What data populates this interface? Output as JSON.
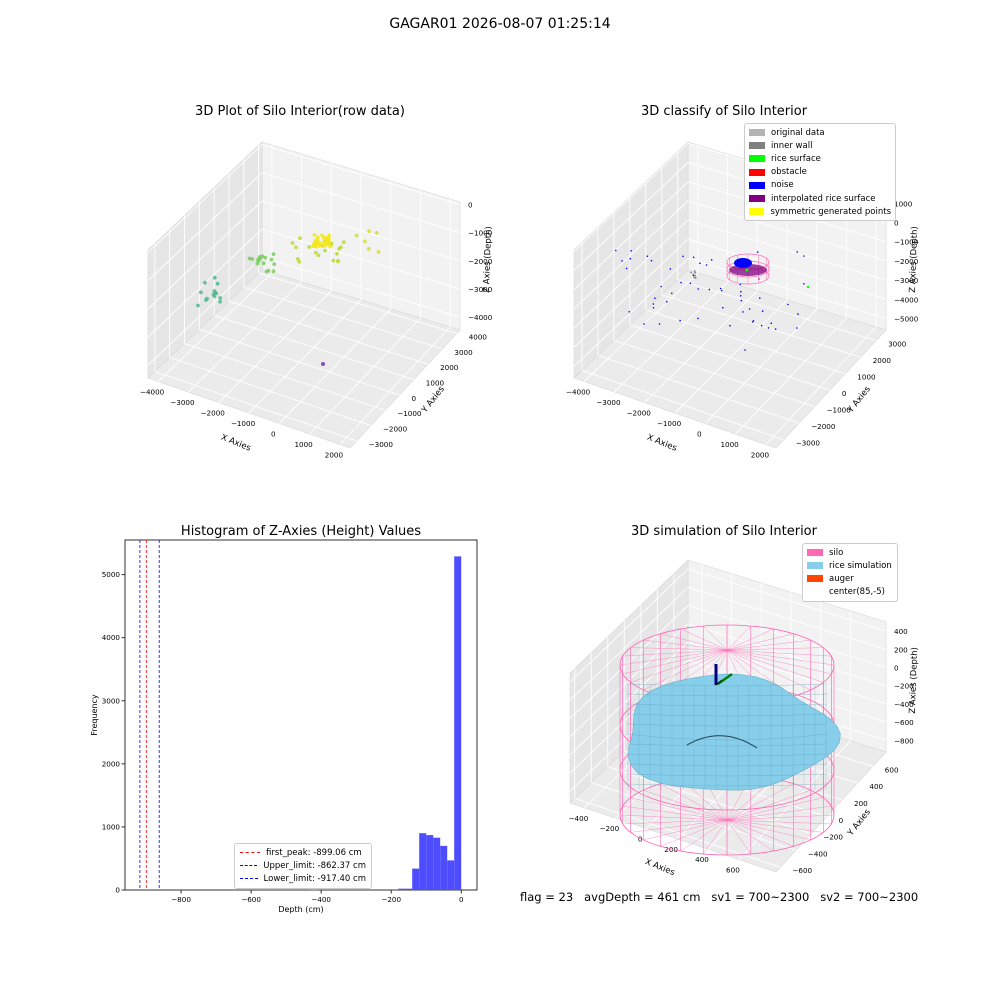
{
  "suptitle": "GAGAR01 2026-08-07 01:25:14",
  "footer": "flag = 23   avgDepth = 461 cm   sv1 = 700~2300   sv2 = 700~2300",
  "colors": {
    "original": "#b3b3b3",
    "inner_wall": "#808080",
    "rice_surface": "#00ff00",
    "obstacle": "#ff0000",
    "noise": "#0000ff",
    "interp": "#800080",
    "symmetric": "#ffff00",
    "silo": "#ff69b4",
    "rice_sim": "#87ceeb",
    "auger": "#ff4500",
    "hist": "#4d4dff"
  },
  "chart_data": [
    {
      "type": "scatter",
      "title": "3D Plot of Silo Interior(row data)",
      "xlabel": "X Axies",
      "ylabel": "Y Axies",
      "zlabel": "Z Axies (Depth)",
      "xticks": [
        "−4000",
        "−3000",
        "−2000",
        "−1000",
        "0",
        "1000",
        "2000"
      ],
      "yticks": [
        "−3000",
        "−2000",
        "−1000",
        "0",
        "1000",
        "2000",
        "3000",
        "4000"
      ],
      "zticks": [
        "0",
        "−1000",
        "−2000",
        "−3000",
        "−4000"
      ],
      "xlim": [
        -4300,
        2400
      ],
      "ylim": [
        -3300,
        4300
      ],
      "zlim": [
        -4500,
        200
      ],
      "grid": true
    },
    {
      "type": "scatter",
      "title": "3D classify of Silo Interior",
      "xlabel": "X Axies",
      "ylabel": "Y Axies",
      "zlabel": "Z Axies (Depth)",
      "xticks": [
        "−4000",
        "−3000",
        "−2000",
        "−1000",
        "0",
        "1000",
        "2000"
      ],
      "yticks": [
        "−3000",
        "−2000",
        "−1000",
        "0",
        "1000",
        "2000",
        "3000"
      ],
      "zticks": [
        "1000",
        "0",
        "−1000",
        "−2000",
        "−3000",
        "−4000",
        "−5000"
      ],
      "xlim": [
        -4300,
        2400
      ],
      "ylim": [
        -3300,
        3500
      ],
      "zlim": [
        -5500,
        1000
      ],
      "legend": [
        "original data",
        "inner wall",
        "rice surface",
        "obstacle",
        "noise",
        "interpolated rice surface",
        "symmetric generated points"
      ],
      "legend_loc": "upper right",
      "grid": true
    },
    {
      "type": "bar",
      "title": "Histogram of Z-Axies (Height) Values",
      "xlabel": "Depth (cm)",
      "ylabel": "Frequency",
      "xlim": [
        -960,
        45
      ],
      "ylim": [
        0,
        5550
      ],
      "xticks": [
        -800,
        -600,
        -400,
        -200,
        0
      ],
      "yticks": [
        0,
        1000,
        2000,
        3000,
        4000,
        5000
      ],
      "bin_edges": [
        -200,
        -180,
        -140,
        -120,
        -100,
        -80,
        -60,
        -40,
        -20,
        0
      ],
      "values": [
        10,
        20,
        340,
        900,
        870,
        830,
        700,
        470,
        5290
      ],
      "outliers": [
        {
          "x": -430,
          "value": 8
        }
      ],
      "vlines": [
        {
          "label": "first_peak: -899.06 cm",
          "x": -899.06,
          "color": "#ff0000"
        },
        {
          "label": "Upper_limit: -862.37 cm",
          "x": -862.37,
          "color": "#0000ff"
        },
        {
          "label": "Lower_limit: -917.40 cm",
          "x": -917.4,
          "color": "#0000ff"
        }
      ],
      "legend_loc": "lower center"
    },
    {
      "type": "surface",
      "title": "3D simulation of Silo Interior",
      "xlabel": "X Axies",
      "ylabel": "Y Axies",
      "zlabel": "Z Axies (Depth)",
      "xticks": [
        "−400",
        "−200",
        "0",
        "200",
        "400",
        "600"
      ],
      "yticks": [
        "−600",
        "−400",
        "−200",
        "0",
        "200",
        "400",
        "600"
      ],
      "zticks": [
        "400",
        "200",
        "0",
        "−200",
        "−400",
        "−600",
        "−800"
      ],
      "legend": [
        "silo",
        "rice simulation",
        "auger",
        "center(85,-5)"
      ],
      "legend_loc": "upper right",
      "grid": true
    }
  ]
}
